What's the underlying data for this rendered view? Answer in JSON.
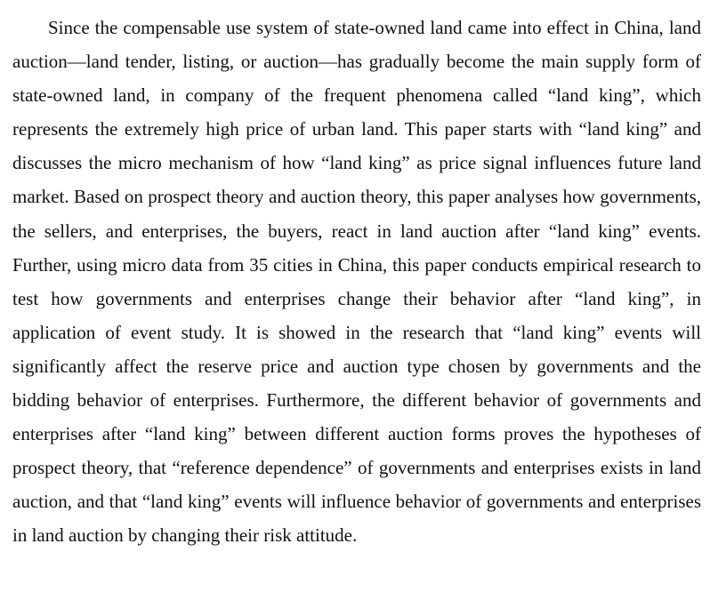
{
  "document": {
    "abstract_paragraph": "Since the compensable use system of state-owned land came into effect in China, land auction—land tender, listing, or auction—has gradually become the main supply form of state-owned land, in company of the frequent phenomena called “land king”, which represents the extremely high price of urban land. This paper starts with “land king” and discusses the micro mechanism of how “land king” as price signal influences future land market. Based on prospect theory and auction theory, this paper analyses how governments, the sellers, and enterprises, the buyers, react in land auction after “land king” events. Further, using micro data from 35 cities in China, this paper conducts empirical research to test how governments and enterprises change their behavior after “land king”, in application of event study. It is showed in the research that “land king” events will significantly affect the reserve price and auction type chosen by governments and the bidding behavior of enterprises. Furthermore, the different behavior of governments and enterprises after “land king” between different auction forms proves the hypotheses of prospect theory, that “reference dependence” of governments and enterprises exists in land auction, and that “land king” events will influence behavior of governments and enterprises in land auction by changing their risk attitude."
  }
}
